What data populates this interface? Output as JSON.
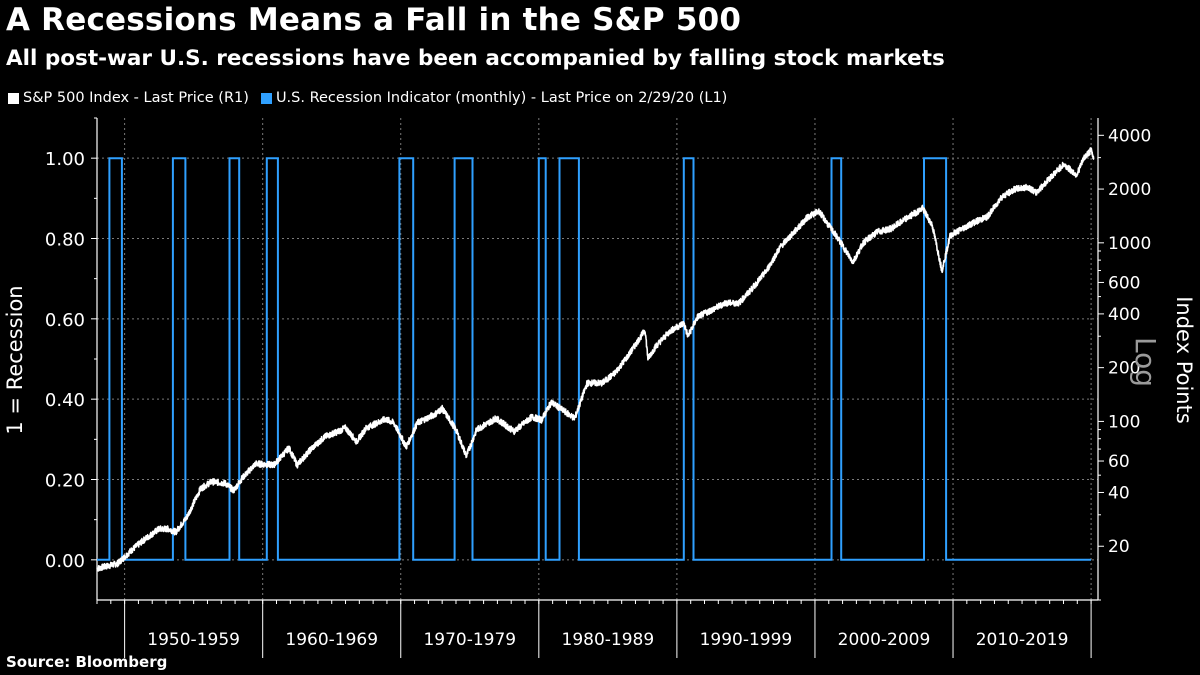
{
  "header": {
    "title": "A Recessions Means a Fall in the S&P 500",
    "subtitle": "All post-war U.S. recessions have been accompanied by falling stock markets"
  },
  "footer": {
    "source": "Source: Bloomberg"
  },
  "chart_data": {
    "type": "line",
    "title": "A Recessions Means a Fall in the S&P 500",
    "subtitle": "All post-war U.S. recessions have been accompanied by falling stock markets",
    "legend_position": "top-left",
    "grid": true,
    "x_range": [
      1948,
      2020.5
    ],
    "x_tick_labels": [
      "1950-1959",
      "1960-1969",
      "1970-1979",
      "1980-1989",
      "1990-1999",
      "2000-2009",
      "2010-2019"
    ],
    "x_decade_boundaries": [
      1950,
      1960,
      1970,
      1980,
      1990,
      2000,
      2010,
      2020
    ],
    "y_left": {
      "label": "1 = Recession",
      "range": [
        -0.1,
        1.1
      ],
      "ticks": [
        0.0,
        0.2,
        0.4,
        0.6,
        0.8,
        1.0
      ],
      "tick_labels": [
        "0.00",
        "0.20",
        "0.40",
        "0.60",
        "0.80",
        "1.00"
      ]
    },
    "y_right": {
      "label": "Index Points",
      "scale": "log",
      "scale_note": "Log",
      "range": [
        10,
        5000
      ],
      "ticks": [
        20,
        40,
        60,
        100,
        200,
        400,
        600,
        1000,
        2000,
        4000
      ],
      "tick_labels": [
        "20",
        "40",
        "60",
        "100",
        "200",
        "400",
        "600",
        "1000",
        "2000",
        "4000"
      ]
    },
    "series": [
      {
        "name": "S&P 500 Index - Last Price (R1)",
        "color": "#ffffff",
        "axis": "right",
        "x": [
          1948.0,
          1949.5,
          1950.5,
          1951.5,
          1952.5,
          1953.2,
          1953.7,
          1954.5,
          1955.5,
          1956.3,
          1957.3,
          1957.9,
          1958.5,
          1959.5,
          1960.8,
          1961.9,
          1962.5,
          1963.5,
          1964.5,
          1965.5,
          1966.0,
          1966.8,
          1967.5,
          1968.9,
          1969.5,
          1970.4,
          1971.2,
          1972.5,
          1973.0,
          1974.0,
          1974.75,
          1975.5,
          1976.9,
          1978.2,
          1979.5,
          1980.2,
          1980.9,
          1982.6,
          1983.5,
          1984.6,
          1985.5,
          1986.5,
          1987.7,
          1987.9,
          1988.5,
          1989.5,
          1990.5,
          1990.8,
          1991.5,
          1992.5,
          1993.5,
          1994.5,
          1995.5,
          1996.5,
          1997.5,
          1998.5,
          1999.5,
          2000.3,
          2001.0,
          2001.7,
          2002.75,
          2003.5,
          2004.5,
          2005.5,
          2006.5,
          2007.8,
          2008.5,
          2009.2,
          2009.8,
          2010.5,
          2011.5,
          2012.5,
          2013.5,
          2014.5,
          2015.5,
          2016.0,
          2017.0,
          2018.0,
          2018.95,
          2019.5,
          2020.0,
          2020.2
        ],
        "values": [
          15,
          16,
          19,
          22,
          25,
          25,
          24,
          29,
          42,
          46,
          45,
          41,
          48,
          58,
          57,
          71,
          57,
          70,
          82,
          88,
          92,
          77,
          92,
          103,
          98,
          72,
          98,
          110,
          118,
          90,
          64,
          90,
          104,
          88,
          106,
          102,
          128,
          104,
          164,
          164,
          186,
          235,
          325,
          225,
          265,
          320,
          355,
          300,
          385,
          420,
          460,
          460,
          560,
          700,
          950,
          1150,
          1400,
          1500,
          1250,
          1050,
          780,
          1000,
          1150,
          1200,
          1350,
          1560,
          1250,
          700,
          1100,
          1180,
          1300,
          1400,
          1800,
          2000,
          2050,
          1900,
          2300,
          2750,
          2400,
          3000,
          3300,
          2950
        ]
      },
      {
        "name": "U.S. Recession Indicator (monthly) - Last Price on 2/29/20 (L1)",
        "color": "#2fa0ff",
        "axis": "left",
        "recessions": [
          [
            1948.9,
            1949.8
          ],
          [
            1953.5,
            1954.4
          ],
          [
            1957.6,
            1958.3
          ],
          [
            1960.3,
            1961.1
          ],
          [
            1969.9,
            1970.9
          ],
          [
            1973.9,
            1975.2
          ],
          [
            1980.0,
            1980.5
          ],
          [
            1981.5,
            1982.9
          ],
          [
            1990.5,
            1991.2
          ],
          [
            2001.2,
            2001.9
          ],
          [
            2007.9,
            2009.5
          ]
        ],
        "x": [
          1948.0,
          1948.9,
          1948.9,
          1949.8,
          1949.8,
          1953.5,
          1953.5,
          1954.4,
          1954.4,
          1957.6,
          1957.6,
          1958.3,
          1958.3,
          1960.3,
          1960.3,
          1961.1,
          1961.1,
          1969.9,
          1969.9,
          1970.9,
          1970.9,
          1973.9,
          1973.9,
          1975.2,
          1975.2,
          1980.0,
          1980.0,
          1980.5,
          1980.5,
          1981.5,
          1981.5,
          1982.9,
          1982.9,
          1990.5,
          1990.5,
          1991.2,
          1991.2,
          2001.2,
          2001.2,
          2001.9,
          2001.9,
          2007.9,
          2007.9,
          2009.5,
          2009.5,
          2020.0
        ],
        "values": [
          0,
          0,
          1,
          1,
          0,
          0,
          1,
          1,
          0,
          0,
          1,
          1,
          0,
          0,
          1,
          1,
          0,
          0,
          1,
          1,
          0,
          0,
          1,
          1,
          0,
          0,
          1,
          1,
          0,
          0,
          1,
          1,
          0,
          0,
          1,
          1,
          0,
          0,
          1,
          1,
          0,
          0,
          1,
          1,
          0,
          0
        ]
      }
    ]
  }
}
